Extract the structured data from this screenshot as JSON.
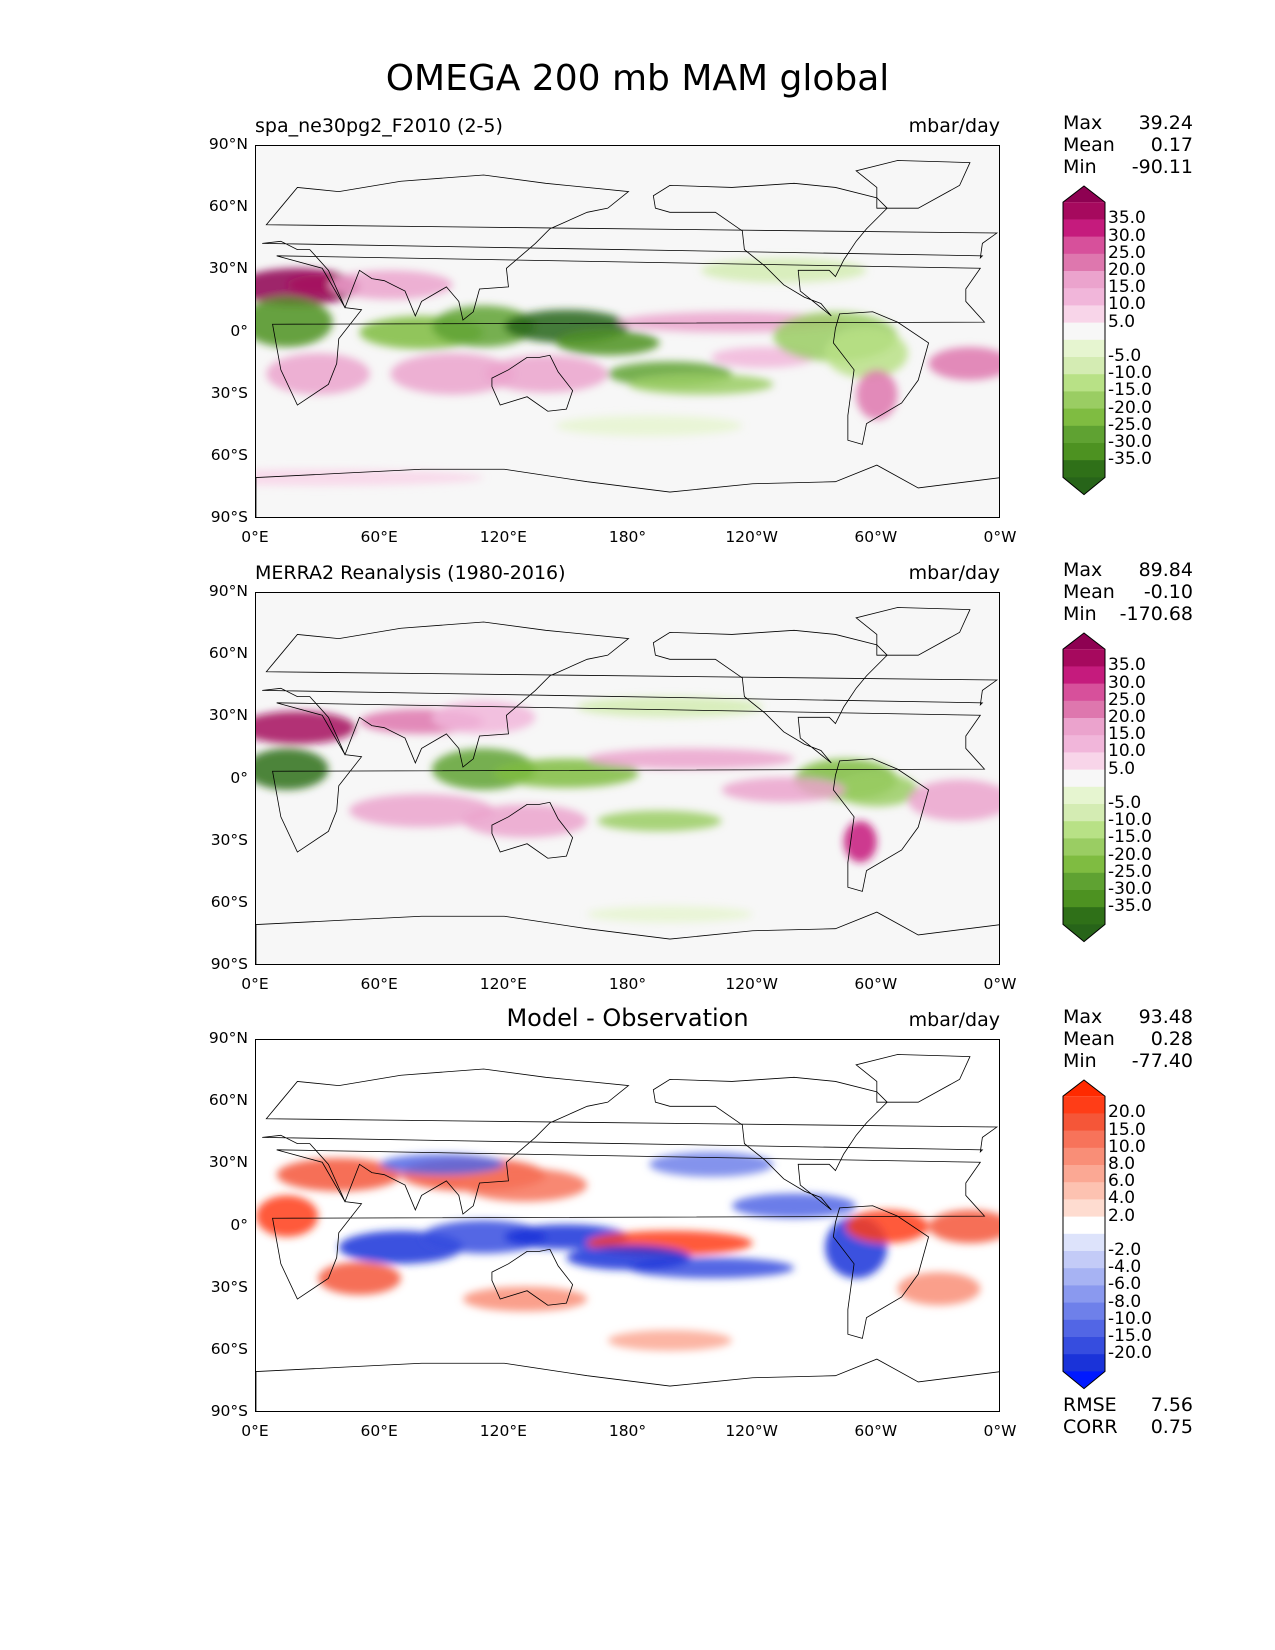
{
  "title": "OMEGA 200 mb MAM global",
  "lat_ticks": [
    "90°N",
    "60°N",
    "30°N",
    "0°",
    "30°S",
    "60°S",
    "90°S"
  ],
  "lon_ticks": [
    "0°E",
    "60°E",
    "120°E",
    "180°",
    "120°W",
    "60°W",
    "0°W"
  ],
  "panels": [
    {
      "title": "spa_ne30pg2_F2010 (2-5)",
      "title_style": "left",
      "units": "mbar/day",
      "stats": {
        "max_label": "Max",
        "max": "39.24",
        "mean_label": "Mean",
        "mean": "0.17",
        "min_label": "Min",
        "min": "-90.11"
      },
      "colorbar_labels": [
        "35.0",
        "30.0",
        "25.0",
        "20.0",
        "15.0",
        "10.0",
        "5.0",
        "-5.0",
        "-10.0",
        "-15.0",
        "-20.0",
        "-25.0",
        "-30.0",
        "-35.0"
      ],
      "colors": [
        "#8e0152",
        "#a6095e",
        "#c51b7d",
        "#d7509b",
        "#de77ae",
        "#eba3cd",
        "#f1b6da",
        "#f8d5e9",
        "#f7f7f7",
        "#e6f5d0",
        "#d4ecb3",
        "#b8e186",
        "#9acd63",
        "#7fbc41",
        "#5fa232",
        "#4d9221",
        "#2f7018",
        "#276419"
      ]
    },
    {
      "title": "MERRA2 Reanalysis (1980-2016)",
      "title_style": "left",
      "units": "mbar/day",
      "stats": {
        "max_label": "Max",
        "max": "89.84",
        "mean_label": "Mean",
        "mean": "-0.10",
        "min_label": "Min",
        "min": "-170.68"
      },
      "colorbar_labels": [
        "35.0",
        "30.0",
        "25.0",
        "20.0",
        "15.0",
        "10.0",
        "5.0",
        "-5.0",
        "-10.0",
        "-15.0",
        "-20.0",
        "-25.0",
        "-30.0",
        "-35.0"
      ],
      "colors": [
        "#8e0152",
        "#a6095e",
        "#c51b7d",
        "#d7509b",
        "#de77ae",
        "#eba3cd",
        "#f1b6da",
        "#f8d5e9",
        "#f7f7f7",
        "#e6f5d0",
        "#d4ecb3",
        "#b8e186",
        "#9acd63",
        "#7fbc41",
        "#5fa232",
        "#4d9221",
        "#2f7018",
        "#276419"
      ]
    },
    {
      "title": "Model - Observation",
      "title_style": "center",
      "units": "mbar/day",
      "stats": {
        "max_label": "Max",
        "max": "93.48",
        "mean_label": "Mean",
        "mean": "0.28",
        "min_label": "Min",
        "min": "-77.40"
      },
      "colorbar_labels": [
        "20.0",
        "15.0",
        "10.0",
        "8.0",
        "6.0",
        "4.0",
        "2.0",
        "-2.0",
        "-4.0",
        "-6.0",
        "-8.0",
        "-10.0",
        "-15.0",
        "-20.0"
      ],
      "colors": [
        "#ff2a00",
        "#ff3d17",
        "#f55638",
        "#f7735a",
        "#f98e77",
        "#fba894",
        "#fdc2b1",
        "#fedcd0",
        "#ffffff",
        "#dde3fb",
        "#c3cbf7",
        "#a7b3f3",
        "#8a99ef",
        "#6e80ea",
        "#5266e5",
        "#364ddf",
        "#1a33d9",
        "#0019ff"
      ],
      "metrics": {
        "rmse_label": "RMSE",
        "rmse": "7.56",
        "corr_label": "CORR",
        "corr": "0.75"
      }
    }
  ]
}
